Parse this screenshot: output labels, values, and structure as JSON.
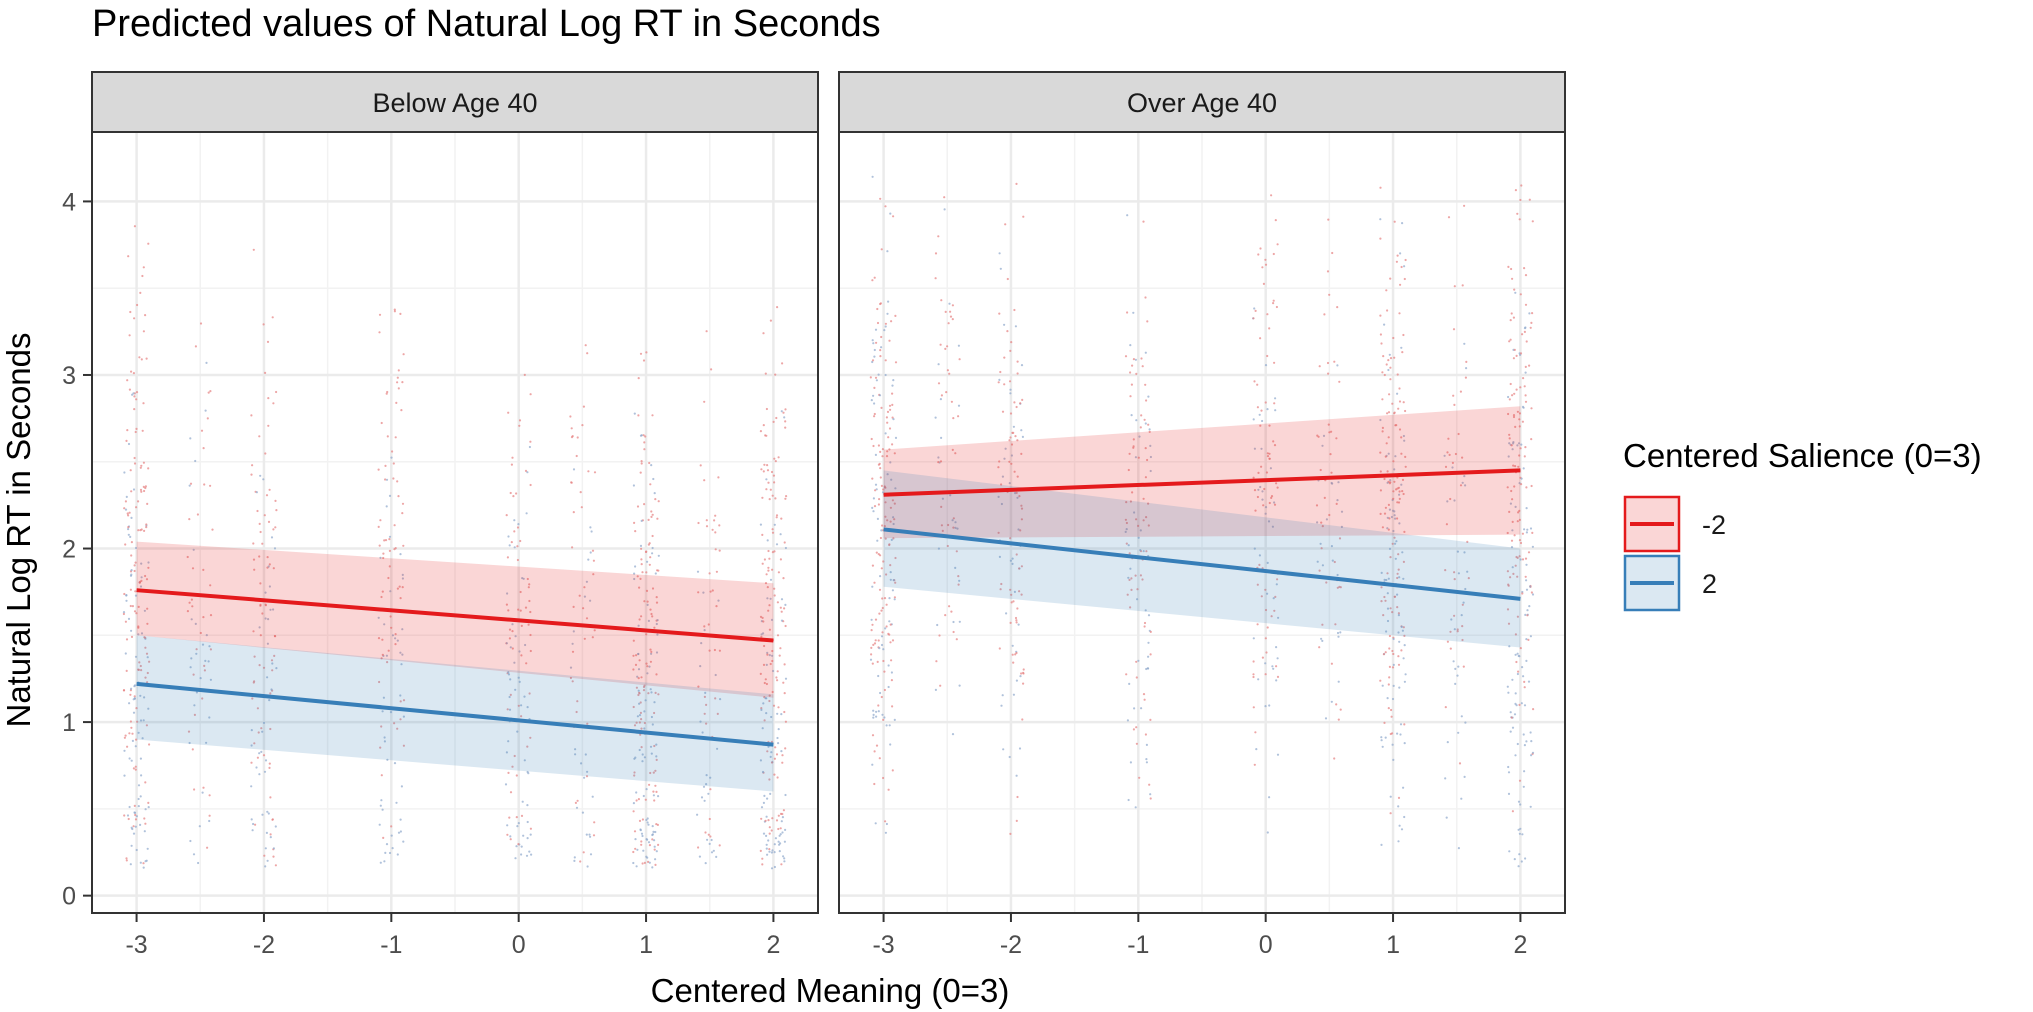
{
  "chart_data": {
    "type": "line",
    "title": "Predicted values of Natural Log RT in Seconds",
    "xlabel": "Centered Meaning (0=3)",
    "ylabel": "Natural Log RT in Seconds",
    "xlim": [
      -3.35,
      2.35
    ],
    "ylim": [
      -0.1,
      4.4
    ],
    "x_ticks": [
      -3,
      -2,
      -1,
      0,
      1,
      2
    ],
    "y_ticks": [
      0,
      1,
      2,
      3,
      4
    ],
    "x_tick_labels": [
      "-3",
      "-2",
      "-1",
      "0",
      "1",
      "2"
    ],
    "y_tick_labels": [
      "0",
      "1",
      "2",
      "3",
      "4"
    ],
    "grid": true,
    "legend": {
      "title": "Centered Salience (0=3)",
      "position": "right",
      "items": [
        {
          "label": "-2",
          "color": "#E41A1C"
        },
        {
          "label": "2",
          "color": "#377EB8"
        }
      ]
    },
    "jitter_columns": [
      -3,
      -2.5,
      -2,
      -1,
      0,
      0.5,
      1,
      1.5,
      2
    ],
    "panels": [
      {
        "strip": "Below Age 40",
        "series": [
          {
            "name": "-2",
            "color": "#E41A1C",
            "x": [
              -3,
              2
            ],
            "y": [
              1.76,
              1.47
            ],
            "ci_lower": [
              1.5,
              1.14
            ],
            "ci_upper": [
              2.04,
              1.8
            ]
          },
          {
            "name": "2",
            "color": "#377EB8",
            "x": [
              -3,
              2
            ],
            "y": [
              1.22,
              0.87
            ],
            "ci_lower": [
              0.9,
              0.6
            ],
            "ci_upper": [
              1.5,
              1.16
            ]
          }
        ]
      },
      {
        "strip": "Over Age 40",
        "series": [
          {
            "name": "-2",
            "color": "#E41A1C",
            "x": [
              -3,
              2
            ],
            "y": [
              2.31,
              2.45
            ],
            "ci_lower": [
              2.06,
              2.08
            ],
            "ci_upper": [
              2.57,
              2.82
            ]
          },
          {
            "name": "2",
            "color": "#377EB8",
            "x": [
              -3,
              2
            ],
            "y": [
              2.11,
              1.71
            ],
            "ci_lower": [
              1.78,
              1.43
            ],
            "ci_upper": [
              2.45,
              2.0
            ]
          }
        ]
      }
    ]
  }
}
